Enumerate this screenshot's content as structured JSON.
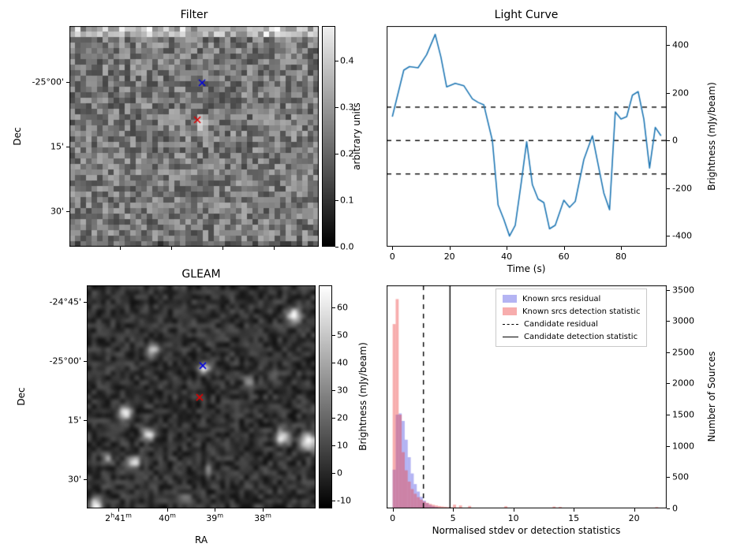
{
  "figure": {
    "background": "#ffffff"
  },
  "chart_data": [
    {
      "id": "filter",
      "type": "heatmap",
      "title": "Filter",
      "ylabel": "Dec",
      "colorbar_label": "arbitrary units",
      "vmin": 0.0,
      "vmax": 0.475,
      "colorbar_top_color": "#efefef",
      "colorbar_ticks": [
        {
          "label": "0.4",
          "v": 0.4
        },
        {
          "label": "0.3",
          "v": 0.3
        },
        {
          "label": "0.2",
          "v": 0.2
        },
        {
          "label": "0.1",
          "v": 0.1
        },
        {
          "label": "0.0",
          "v": 0.0
        }
      ],
      "yticks": [
        {
          "label": "-25°00'",
          "f": 0.254
        },
        {
          "label": "15'",
          "f": 0.546
        },
        {
          "label": "30'",
          "f": 0.839
        }
      ],
      "xticks": [
        {
          "f": 0.203
        },
        {
          "f": 0.408
        },
        {
          "f": 0.614
        },
        {
          "f": 0.82
        }
      ],
      "markers": [
        {
          "name": "known-source-marker",
          "symbol": "x",
          "color": "#0000dd",
          "fx": 0.532,
          "fy": 0.257
        },
        {
          "name": "candidate-marker",
          "symbol": "x",
          "color": "#dd0000",
          "fx": 0.513,
          "fy": 0.425
        }
      ],
      "sources": [
        {
          "fx": 0.513,
          "fy": 0.425,
          "r": 4,
          "amp": 0.24
        },
        {
          "fx": 0.83,
          "fy": 0.025,
          "r": 7,
          "amp": 0.15
        },
        {
          "fx": 0.3,
          "fy": 0.02,
          "r": 5,
          "amp": 0.1
        }
      ],
      "noise": {
        "cols": 45,
        "rows": 40,
        "seed": 1234,
        "base": 0.225,
        "spread": 0.095,
        "top_rows": 2,
        "top_boost": 0.13,
        "bottom_dark": 0.05,
        "smooth": false
      }
    },
    {
      "id": "light_curve",
      "type": "line",
      "title": "Light Curve",
      "xlabel": "Time (s)",
      "ylabel": "Brightness (mJy/beam)",
      "line_color": "#1f77b4",
      "yaxis_side": "right",
      "xlim": [
        -2,
        96
      ],
      "ylim": [
        -445,
        480
      ],
      "xticks": [
        0,
        20,
        40,
        60,
        80
      ],
      "yticks": [
        -400,
        -200,
        0,
        200,
        400
      ],
      "dashed_hlines": [
        140,
        0,
        -140
      ],
      "x": [
        0,
        4,
        6,
        9,
        12,
        15,
        17,
        19,
        22,
        25,
        28,
        30,
        32,
        35,
        37,
        39,
        41,
        43,
        45,
        47,
        49,
        51,
        53,
        55,
        57,
        60,
        62,
        64,
        67,
        70,
        72,
        74,
        76,
        78,
        80,
        82,
        84,
        86,
        88,
        90,
        92,
        94
      ],
      "y": [
        100,
        295,
        310,
        305,
        360,
        445,
        350,
        225,
        240,
        230,
        175,
        160,
        150,
        0,
        -270,
        -330,
        -400,
        -355,
        -185,
        -5,
        -185,
        -245,
        -260,
        -370,
        -355,
        -250,
        -280,
        -255,
        -80,
        20,
        -100,
        -220,
        -290,
        120,
        90,
        100,
        190,
        205,
        90,
        -115,
        55,
        20
      ]
    },
    {
      "id": "gleam",
      "type": "heatmap",
      "title": "GLEAM",
      "xlabel": "RA",
      "ylabel": "Dec",
      "colorbar_label": "Brightness (mJy/beam)",
      "vmin": -13,
      "vmax": 68,
      "colorbar_top_color": "#ffffff",
      "colorbar_ticks": [
        {
          "label": "60",
          "v": 60
        },
        {
          "label": "50",
          "v": 50
        },
        {
          "label": "40",
          "v": 40
        },
        {
          "label": "30",
          "v": 30
        },
        {
          "label": "20",
          "v": 20
        },
        {
          "label": "10",
          "v": 10
        },
        {
          "label": "0",
          "v": 0
        },
        {
          "label": "-10",
          "v": -10
        }
      ],
      "yticks": [
        {
          "label": "-24°45'",
          "f": 0.074
        },
        {
          "label": "-25°00'",
          "f": 0.339
        },
        {
          "label": "15'",
          "f": 0.604
        },
        {
          "label": "30'",
          "f": 0.869
        }
      ],
      "xticks": [
        {
          "segments": [
            [
              "2",
              false
            ],
            [
              "h",
              true
            ],
            [
              "41",
              false
            ],
            [
              "m",
              true
            ]
          ],
          "f": 0.138
        },
        {
          "segments": [
            [
              "40",
              false
            ],
            [
              "m",
              true
            ]
          ],
          "f": 0.352
        },
        {
          "segments": [
            [
              "39",
              false
            ],
            [
              "m",
              true
            ]
          ],
          "f": 0.559
        },
        {
          "segments": [
            [
              "38",
              false
            ],
            [
              "m",
              true
            ]
          ],
          "f": 0.769
        }
      ],
      "markers": [
        {
          "name": "known-source-marker",
          "symbol": "x",
          "color": "#0000dd",
          "fx": 0.507,
          "fy": 0.36
        },
        {
          "name": "candidate-marker",
          "symbol": "x",
          "color": "#dd0000",
          "fx": 0.493,
          "fy": 0.502
        }
      ],
      "sources": [
        {
          "fx": 0.897,
          "fy": 0.123,
          "r": 6,
          "amp": 75
        },
        {
          "fx": 0.276,
          "fy": 0.281,
          "r": 5,
          "amp": 60
        },
        {
          "fx": 0.507,
          "fy": 0.36,
          "r": 4.5,
          "amp": 70
        },
        {
          "fx": 0.155,
          "fy": 0.561,
          "r": 5.5,
          "amp": 70
        },
        {
          "fx": 0.259,
          "fy": 0.656,
          "r": 5,
          "amp": 65
        },
        {
          "fx": 0.197,
          "fy": 0.782,
          "r": 5,
          "amp": 60
        },
        {
          "fx": 0.079,
          "fy": 0.765,
          "r": 4,
          "amp": 40
        },
        {
          "fx": 0.845,
          "fy": 0.67,
          "r": 6,
          "amp": 70
        },
        {
          "fx": 0.959,
          "fy": 0.688,
          "r": 7,
          "amp": 75
        },
        {
          "fx": 0.031,
          "fy": 0.972,
          "r": 5,
          "amp": 70
        },
        {
          "fx": 0.421,
          "fy": 0.944,
          "r": 3.5,
          "amp": 35
        },
        {
          "fx": 0.697,
          "fy": 0.421,
          "r": 3.5,
          "amp": 30
        },
        {
          "fx": 0.524,
          "fy": 0.818,
          "r": 3,
          "amp": 25
        },
        {
          "fx": 0.803,
          "fy": 0.386,
          "r": 3,
          "amp": 25
        }
      ],
      "noise": {
        "cols": 48,
        "rows": 47,
        "seed": 777,
        "base": 3,
        "spread": 10,
        "smooth": true
      }
    },
    {
      "id": "histogram",
      "type": "bar",
      "xlabel": "Normalised stdev or detection statistics",
      "ylabel": "Number of Sources",
      "yaxis_side": "right",
      "xlim": [
        -0.5,
        22.7
      ],
      "ylim": [
        0,
        3570
      ],
      "xticks": [
        0,
        5,
        10,
        15,
        20
      ],
      "yticks": [
        0,
        500,
        1000,
        1500,
        2000,
        2500,
        3000,
        3500
      ],
      "bin_start": 0,
      "bin_width": 0.25,
      "series": [
        {
          "name": "Known srcs residual",
          "color": "rgba(40,40,220,0.35)",
          "values": [
            620,
            1500,
            1520,
            1400,
            1100,
            820,
            560,
            390,
            270,
            185,
            125,
            85,
            55,
            35,
            22,
            14,
            9,
            6,
            4,
            3,
            2,
            1,
            1,
            0
          ]
        },
        {
          "name": "Known srcs detection statistic",
          "color": "rgba(235,60,60,0.42)",
          "values": [
            2950,
            3350,
            1500,
            900,
            610,
            430,
            310,
            235,
            180,
            140,
            110,
            90,
            72,
            58,
            47,
            38,
            31,
            26,
            21,
            17,
            60,
            14,
            48,
            11,
            10,
            40,
            8,
            7,
            6,
            5,
            5,
            4,
            4,
            3,
            3,
            3,
            2,
            35,
            2,
            2,
            2,
            1,
            1,
            1,
            1,
            1,
            1,
            1,
            1,
            1,
            1,
            1,
            1,
            30,
            1,
            25,
            1,
            1,
            0,
            0,
            0,
            0,
            0,
            0,
            0,
            0,
            0,
            0,
            0,
            0,
            0,
            0,
            0,
            0,
            0,
            0,
            0,
            0,
            0,
            0,
            0,
            0,
            0,
            0,
            0,
            0,
            0,
            22
          ]
        }
      ],
      "vlines": [
        {
          "name": "Candidate residual",
          "x": 2.55,
          "style": "dashed"
        },
        {
          "name": "Candidate detection statistic",
          "x": 4.75,
          "style": "solid"
        }
      ],
      "legend": [
        {
          "label": "Known srcs residual",
          "swatch": "patch",
          "color": "#b4b4f3"
        },
        {
          "label": "Known srcs detection statistic",
          "swatch": "patch",
          "color": "#f7adad"
        },
        {
          "label": "Candidate residual",
          "swatch": "dashed-line",
          "color": "#000000"
        },
        {
          "label": "Candidate detection statistic",
          "swatch": "solid-line",
          "color": "#000000"
        }
      ]
    }
  ]
}
